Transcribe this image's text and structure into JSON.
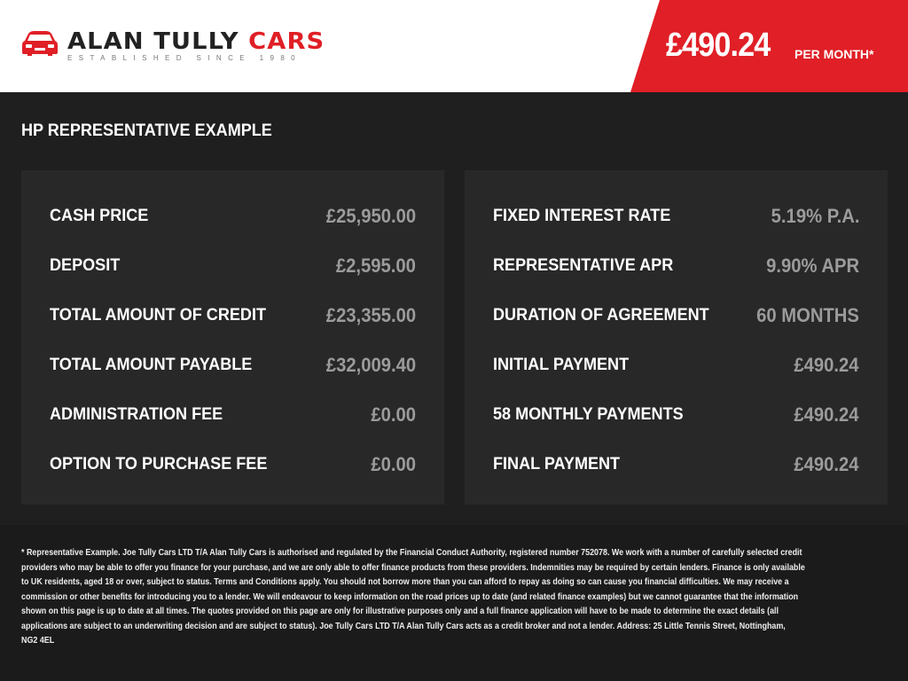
{
  "brand": {
    "name_dark": "ALAN TULLY",
    "name_red": "CARS",
    "tagline": "ESTABLISHED SINCE 1980",
    "accent": "#e01f26"
  },
  "banner": {
    "price": "£490.24",
    "suffix": "PER MONTH*"
  },
  "section_title": "HP REPRESENTATIVE EXAMPLE",
  "left_rows": [
    {
      "label": "CASH PRICE",
      "value": "£25,950.00"
    },
    {
      "label": "DEPOSIT",
      "value": "£2,595.00"
    },
    {
      "label": "TOTAL AMOUNT OF CREDIT",
      "value": "£23,355.00"
    },
    {
      "label": "TOTAL AMOUNT PAYABLE",
      "value": "£32,009.40"
    },
    {
      "label": "ADMINISTRATION FEE",
      "value": "£0.00"
    },
    {
      "label": "OPTION TO PURCHASE FEE",
      "value": "£0.00"
    }
  ],
  "right_rows": [
    {
      "label": "FIXED INTEREST RATE",
      "value": "5.19% P.A."
    },
    {
      "label": "REPRESENTATIVE APR",
      "value": "9.90% APR"
    },
    {
      "label": "DURATION OF AGREEMENT",
      "value": "60 MONTHS"
    },
    {
      "label": "INITIAL PAYMENT",
      "value": "£490.24"
    },
    {
      "label": "58 MONTHLY PAYMENTS",
      "value": "£490.24"
    },
    {
      "label": "FINAL PAYMENT",
      "value": "£490.24"
    }
  ],
  "disclaimer_lines": [
    "* Representative Example. Joe Tully Cars LTD T/A  Alan Tully Cars is authorised and regulated by the Financial Conduct Authority, registered number 752078. We work with a number of carefully selected credit",
    "providers who may be able to offer you finance for your purchase, and we are only able to offer finance products from these providers. Indemnities may be required by certain lenders. Finance is only available",
    "to UK residents, aged 18 or over, subject to status. Terms and Conditions apply. You should not borrow more than you can afford to repay as doing so can cause you financial difficulties. We may receive a",
    "commission or other benefits for introducing you to a lender. We will endeavour to keep information on the road prices up to date (and related finance examples) but we cannot guarantee that the information",
    "shown on this page is up to date at all times. The quotes provided on this page are only for illustrative purposes only and a full finance application will have to be made to determine the exact details (all",
    "applications are subject to an underwriting decision and are subject to status). Joe Tully Cars LTD T/A  Alan Tully Cars acts as a credit broker and not a lender. Address: 25 Little Tennis Street, Nottingham,",
    "NG2 4EL"
  ]
}
